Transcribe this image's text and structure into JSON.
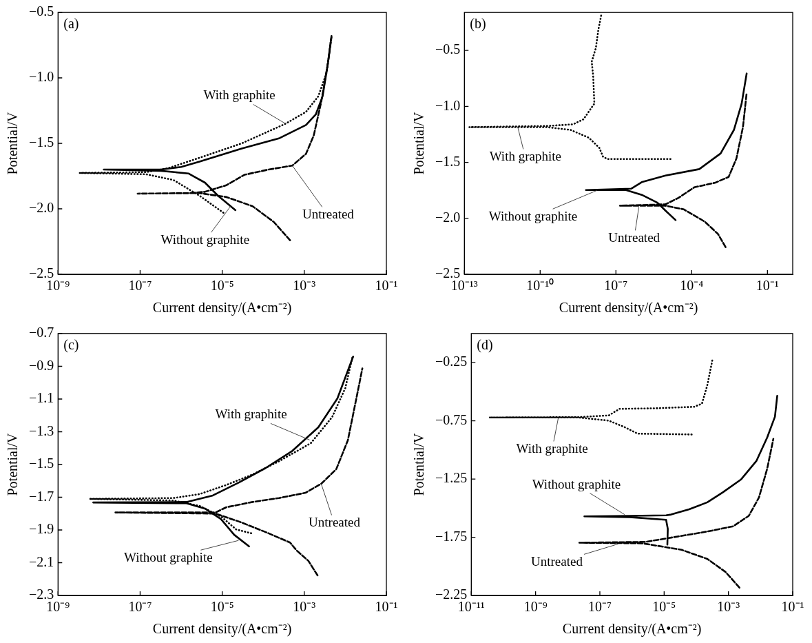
{
  "chart_data": [
    {
      "type": "line",
      "title": "(a)",
      "xlabel": "Current density/(A•cm⁻²)",
      "ylabel": "Potential/V",
      "log": "x",
      "xlim": [
        1e-09,
        0.1
      ],
      "ylim": [
        -2.5,
        -0.5
      ],
      "xticks": [
        {
          "value": 1e-09,
          "label": "10⁻⁹"
        },
        {
          "value": 1e-07,
          "label": "10⁻⁷"
        },
        {
          "value": 1e-05,
          "label": "10⁻⁵"
        },
        {
          "value": 0.001,
          "label": "10⁻³"
        },
        {
          "value": 0.1,
          "label": "10⁻¹"
        }
      ],
      "yticks": [
        {
          "value": -2.5,
          "label": "−2.5"
        },
        {
          "value": -2.0,
          "label": "−2.0"
        },
        {
          "value": -1.5,
          "label": "−1.5"
        },
        {
          "value": -1.0,
          "label": "−1.0"
        },
        {
          "value": -0.5,
          "label": "−0.5"
        }
      ],
      "series": [
        {
          "color": "#000000",
          "line_style": "solid",
          "x": [
            2.1e-05,
            7.9e-06,
            3.8e-06,
            1.5e-06,
            3.2e-07,
            1.3e-08,
            3.2e-07,
            1e-06,
            2.8e-06,
            3e-05,
            0.00025,
            0.0011,
            0.0019,
            0.0028,
            0.0038,
            0.0046
          ],
          "values": [
            -2.01,
            -1.9,
            -1.8,
            -1.73,
            -1.71,
            -1.7,
            -1.7,
            -1.68,
            -1.64,
            -1.54,
            -1.46,
            -1.36,
            -1.28,
            -1.14,
            -0.88,
            -0.68
          ]
        },
        {
          "color": "#000000",
          "line_style": "dotted",
          "x": [
            1.07e-05,
            2.8e-06,
            6.5e-07,
            1.4e-07,
            3.3e-09,
            1.4e-07,
            4.8e-07,
            2.8e-06,
            3e-05,
            0.00035,
            0.0011,
            0.0022,
            0.0035,
            0.0045
          ],
          "values": [
            -2.03,
            -1.9,
            -1.78,
            -1.736,
            -1.726,
            -1.72,
            -1.69,
            -1.61,
            -1.5,
            -1.35,
            -1.26,
            -1.14,
            -0.96,
            -0.7
          ]
        },
        {
          "color": "#000000",
          "line_style": "dashed",
          "x": [
            0.00045,
            0.00018,
            5.5e-05,
            1.26e-05,
            2.8e-06,
            8.7e-08,
            1.6e-06,
            3.8e-06,
            1.26e-05,
            3.5e-05,
            0.000135,
            0.00051,
            0.0011,
            0.0017,
            0.0026,
            0.0038,
            0.0046
          ],
          "values": [
            -2.24,
            -2.1,
            -1.98,
            -1.91,
            -1.88,
            -1.884,
            -1.88,
            -1.87,
            -1.82,
            -1.74,
            -1.7,
            -1.67,
            -1.58,
            -1.44,
            -1.18,
            -0.88,
            -0.69
          ]
        }
      ],
      "annotations": [
        {
          "text": "With graphite",
          "x": 0.00035,
          "y": -1.35
        },
        {
          "text": "Without graphite",
          "x": 1.6e-05,
          "y": -1.98
        },
        {
          "text": "Untreated",
          "x": 0.00051,
          "y": -1.67
        }
      ]
    },
    {
      "type": "line",
      "title": "(b)",
      "xlabel": "Current density/(A•cm⁻²)",
      "ylabel": "Potential/V",
      "log": "x",
      "xlim": [
        1e-13,
        1
      ],
      "ylim": [
        -2.5,
        -0.16
      ],
      "xticks": [
        {
          "value": 1e-13,
          "label": "10⁻¹³"
        },
        {
          "value": 1e-10,
          "label": "10⁻¹⁰"
        },
        {
          "value": 1e-07,
          "label": "10⁻⁷"
        },
        {
          "value": 0.0001,
          "label": "10⁻⁴"
        },
        {
          "value": 0.1,
          "label": "10⁻¹"
        }
      ],
      "yticks": [
        {
          "value": -2.5,
          "label": "−2.5"
        },
        {
          "value": -2.0,
          "label": "−2.0"
        },
        {
          "value": -1.5,
          "label": "−1.5"
        },
        {
          "value": -1.0,
          "label": "−1.0"
        },
        {
          "value": -0.5,
          "label": "−0.5"
        }
      ],
      "series": [
        {
          "color": "#000000",
          "line_style": "dotted",
          "x": [
            1.45e-05,
            4.6e-08,
            3.1e-08,
            2.2e-08,
            8.5e-09,
            1.6e-09,
            1.8e-10,
            1.55e-13,
            1.8e-10,
            2e-09,
            5.2e-09,
            8.5e-09,
            1.4e-08,
            1.25e-08,
            1.1e-08,
            1.6e-08,
            2e-08,
            2.7e-08
          ],
          "values": [
            -1.47,
            -1.47,
            -1.45,
            -1.37,
            -1.28,
            -1.21,
            -1.185,
            -1.185,
            -1.175,
            -1.16,
            -1.115,
            -1.045,
            -0.975,
            -0.72,
            -0.6,
            -0.48,
            -0.32,
            -0.17
          ]
        },
        {
          "color": "#000000",
          "line_style": "solid",
          "x": [
            2.3e-05,
            9.1e-06,
            4.4e-06,
            1.05e-06,
            2.5e-07,
            6.5e-09,
            4e-07,
            1.05e-06,
            9.1e-06,
            0.0002,
            0.0014,
            0.0047,
            0.0095,
            0.015
          ],
          "values": [
            -2.016,
            -1.93,
            -1.86,
            -1.79,
            -1.747,
            -1.747,
            -1.735,
            -1.677,
            -1.618,
            -1.56,
            -1.42,
            -1.21,
            -0.975,
            -0.706
          ]
        },
        {
          "color": "#000000",
          "line_style": "dashed",
          "x": [
            0.0022,
            0.0011,
            0.00033,
            4.9e-05,
            9.1e-06,
            1.45e-07,
            9.1e-06,
            3e-05,
            0.000126,
            0.00087,
            0.0029,
            0.0059,
            0.0107,
            0.015
          ],
          "values": [
            -2.257,
            -2.14,
            -2.03,
            -1.92,
            -1.887,
            -1.887,
            -1.875,
            -1.817,
            -1.723,
            -1.681,
            -1.63,
            -1.466,
            -1.185,
            -0.88
          ]
        }
      ],
      "annotations": [
        {
          "text": "With graphite",
          "x": 1.3e-11,
          "y": -1.185
        },
        {
          "text": "Without graphite",
          "x": 1.8e-08,
          "y": -1.75
        },
        {
          "text": "Untreated",
          "x": 8.1e-07,
          "y": -1.899
        }
      ]
    },
    {
      "type": "line",
      "title": "(c)",
      "xlabel": "Current density/(A•cm⁻²)",
      "ylabel": "Potential/V",
      "log": "x",
      "xlim": [
        1e-09,
        0.1
      ],
      "ylim": [
        -2.3,
        -0.7
      ],
      "xticks": [
        {
          "value": 1e-09,
          "label": "10⁻⁹"
        },
        {
          "value": 1e-07,
          "label": "10⁻⁷"
        },
        {
          "value": 1e-05,
          "label": "10⁻⁵"
        },
        {
          "value": 0.001,
          "label": "10⁻³"
        },
        {
          "value": 0.1,
          "label": "10⁻¹"
        }
      ],
      "yticks": [
        {
          "value": -2.3,
          "label": "−2.3"
        },
        {
          "value": -2.1,
          "label": "−2.1"
        },
        {
          "value": -1.9,
          "label": "−1.9"
        },
        {
          "value": -1.7,
          "label": "−1.7"
        },
        {
          "value": -1.5,
          "label": "−1.5"
        },
        {
          "value": -1.3,
          "label": "−1.3"
        },
        {
          "value": -1.1,
          "label": "−1.1"
        },
        {
          "value": -0.9,
          "label": "−0.9"
        },
        {
          "value": -0.7,
          "label": "−0.7"
        }
      ],
      "series": [
        {
          "color": "#000000",
          "line_style": "dotted",
          "x": [
            5.1e-05,
            2.2e-05,
            9.3e-06,
            2.8e-06,
            6.5e-07,
            5.9e-09,
            6.5e-07,
            2.8e-06,
            1.26e-05,
            5.5e-05,
            0.00024,
            0.00145,
            0.0048,
            0.01,
            0.015
          ],
          "values": [
            -1.92,
            -1.897,
            -1.817,
            -1.753,
            -1.72,
            -1.71,
            -1.705,
            -1.681,
            -1.625,
            -1.561,
            -1.481,
            -1.369,
            -1.209,
            -1.033,
            -0.841
          ]
        },
        {
          "color": "#000000",
          "line_style": "solid",
          "x": [
            4.5e-05,
            1.95e-05,
            9.3e-06,
            3.8e-06,
            1.35e-06,
            7.2e-09,
            1.35e-06,
            5.9e-06,
            2.6e-05,
            0.000115,
            0.00051,
            0.0022,
            0.0064,
            0.0155
          ],
          "values": [
            -2.0,
            -1.929,
            -1.833,
            -1.769,
            -1.737,
            -1.732,
            -1.729,
            -1.689,
            -1.609,
            -1.521,
            -1.417,
            -1.273,
            -1.097,
            -0.841
          ]
        },
        {
          "color": "#000000",
          "line_style": "dashed",
          "x": [
            0.0021,
            0.00126,
            0.00065,
            0.00045,
            0.000115,
            2.6e-05,
            6.9e-06,
            2.5e-08,
            6.9e-06,
            1.26e-05,
            5.5e-05,
            0.00024,
            0.00107,
            0.0026,
            0.006,
            0.0115,
            0.018,
            0.026
          ],
          "values": [
            -2.177,
            -2.089,
            -2.025,
            -1.977,
            -1.913,
            -1.849,
            -1.8,
            -1.793,
            -1.793,
            -1.761,
            -1.729,
            -1.705,
            -1.673,
            -1.617,
            -1.529,
            -1.353,
            -1.113,
            -0.913
          ]
        }
      ],
      "annotations": [
        {
          "text": "With graphite",
          "x": 0.00135,
          "y": -1.35
        },
        {
          "text": "Without graphite",
          "x": 2.5e-05,
          "y": -1.964
        },
        {
          "text": "Untreated",
          "x": 0.0026,
          "y": -1.62
        }
      ]
    },
    {
      "type": "line",
      "title": "(d)",
      "xlabel": "Current density/(A•cm⁻²)",
      "ylabel": "Potential/V",
      "log": "x",
      "xlim": [
        1e-11,
        0.1
      ],
      "ylim": [
        -2.25,
        0
      ],
      "xticks": [
        {
          "value": 1e-11,
          "label": "10⁻¹¹"
        },
        {
          "value": 1e-09,
          "label": "10⁻⁹"
        },
        {
          "value": 1e-07,
          "label": "10⁻⁷"
        },
        {
          "value": 1e-05,
          "label": "10⁻⁵"
        },
        {
          "value": 0.001,
          "label": "10⁻³"
        },
        {
          "value": 0.1,
          "label": "10⁻¹"
        }
      ],
      "yticks": [
        {
          "value": -2.25,
          "label": "−2.25"
        },
        {
          "value": -1.75,
          "label": "−1.75"
        },
        {
          "value": -1.25,
          "label": "−1.25"
        },
        {
          "value": -0.75,
          "label": "−0.75"
        },
        {
          "value": -0.25,
          "label": "−0.25"
        }
      ],
      "series": [
        {
          "color": "#000000",
          "line_style": "dotted",
          "x": [
            7.2e-05,
            1.5e-06,
            5.9e-07,
            1.9e-07,
            2.1e-08,
            3.6e-11,
            2.1e-08,
            1.9e-07,
            4.1e-07,
            5.4e-06,
            8.7e-05,
            0.00015,
            0.00022,
            0.00032
          ],
          "values": [
            -0.867,
            -0.86,
            -0.804,
            -0.748,
            -0.721,
            -0.721,
            -0.718,
            -0.703,
            -0.647,
            -0.642,
            -0.629,
            -0.602,
            -0.445,
            -0.221
          ]
        },
        {
          "color": "#000000",
          "line_style": "solid",
          "x": [
            1.26e-05,
            1.3e-05,
            1.15e-05,
            8.5e-07,
            3.3e-08,
            8.5e-07,
            1.15e-05,
            1.65e-05,
            6e-05,
            0.00022,
            0.00067,
            0.0025,
            0.0074,
            0.016,
            0.028,
            0.033
          ],
          "values": [
            -1.813,
            -1.678,
            -1.6,
            -1.577,
            -1.571,
            -1.566,
            -1.562,
            -1.555,
            -1.51,
            -1.45,
            -1.364,
            -1.252,
            -1.095,
            -0.894,
            -0.714,
            -0.535
          ]
        },
        {
          "color": "#000000",
          "line_style": "dashed",
          "x": [
            0.0022,
            0.00081,
            0.00022,
            3.5e-05,
            2.1e-06,
            2.3e-08,
            2.6e-06,
            1.38e-05,
            0.00022,
            0.0014,
            0.0043,
            0.0089,
            0.016,
            0.025
          ],
          "values": [
            -2.183,
            -2.048,
            -1.936,
            -1.858,
            -1.802,
            -1.797,
            -1.79,
            -1.757,
            -1.701,
            -1.656,
            -1.566,
            -1.409,
            -1.163,
            -0.905
          ]
        }
      ],
      "annotations": [
        {
          "text": "With graphite",
          "x": 5.1e-09,
          "y": -0.725
        },
        {
          "text": "Without graphite",
          "x": 5.9e-07,
          "y": -1.555
        },
        {
          "text": "Untreated",
          "x": 3.7e-07,
          "y": -1.808
        }
      ]
    }
  ]
}
